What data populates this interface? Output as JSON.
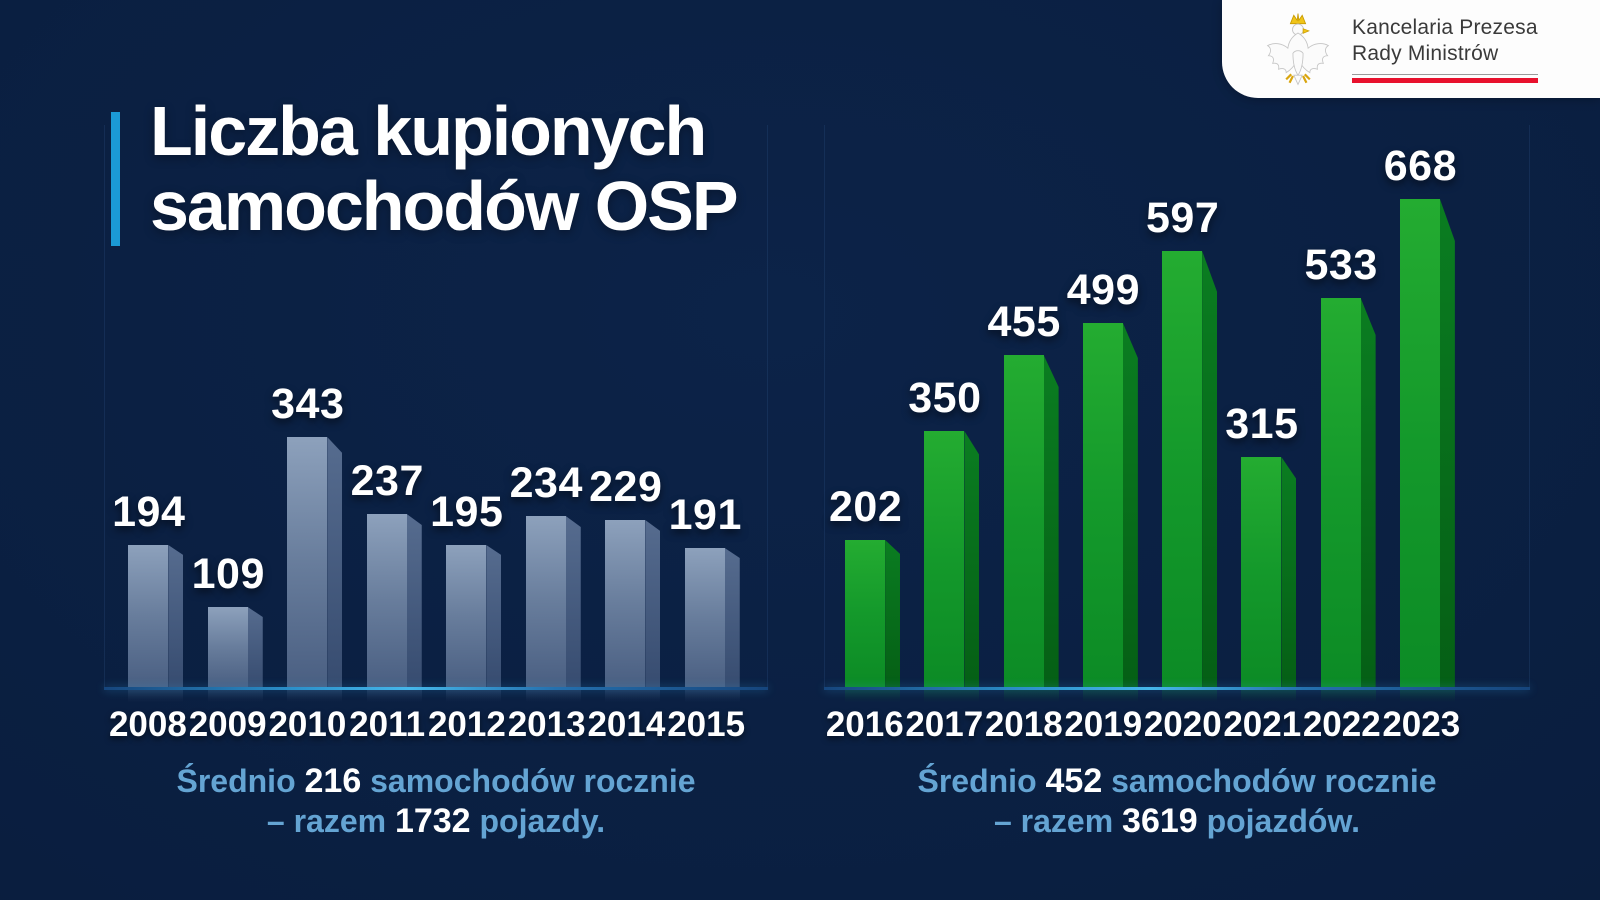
{
  "page": {
    "background_color": "#0a1e3f",
    "accent_blue": "#1b9ad6",
    "caption_blue": "#64a4d3",
    "axis_line_color": "#2e9fd9"
  },
  "logo": {
    "org_line1": "Kancelaria Prezesa",
    "org_line2": "Rady Ministrów",
    "emblem": "polish-white-eagle-with-gold-crown",
    "red_bar_color": "#e8112d",
    "divider_color": "#9a9a9a"
  },
  "title": {
    "line1": "Liczba kupionych",
    "line2": "samochodów OSP"
  },
  "chart_data": [
    {
      "type": "bar",
      "name": "Samochody OSP kupione 2008-2015",
      "categories": [
        "2008",
        "2009",
        "2010",
        "2011",
        "2012",
        "2013",
        "2014",
        "2015"
      ],
      "values": [
        194,
        109,
        343,
        237,
        195,
        234,
        229,
        191
      ],
      "ylim": [
        0,
        700
      ],
      "value_labels": true,
      "legend": "none",
      "grid": false,
      "colors": {
        "front_top": "#8da1bc",
        "front_mid": "#687d9c",
        "front_bottom": "#4a5f82",
        "side_top": "#566c8f",
        "side_bottom": "#374c70"
      }
    },
    {
      "type": "bar",
      "name": "Samochody OSP kupione 2016-2023",
      "categories": [
        "2016",
        "2017",
        "2018",
        "2019",
        "2020",
        "2021",
        "2022",
        "2023"
      ],
      "values": [
        202,
        350,
        455,
        499,
        597,
        315,
        533,
        668
      ],
      "ylim": [
        0,
        700
      ],
      "value_labels": true,
      "legend": "none",
      "grid": false,
      "colors": {
        "front_top": "#24ac31",
        "front_mid": "#14992b",
        "front_bottom": "#0c8b25",
        "side_top": "#0a7d21",
        "side_bottom": "#055f15"
      }
    }
  ],
  "captions": {
    "left": {
      "pre": "Średnio",
      "avg": "216",
      "post": "samochodów rocznie",
      "pre2": "– razem",
      "total": "1732",
      "post2": "pojazdy."
    },
    "right": {
      "pre": "Średnio",
      "avg": "452",
      "post": "samochodów rocznie",
      "pre2": "– razem",
      "total": "3619",
      "post2": "pojazdów."
    }
  }
}
